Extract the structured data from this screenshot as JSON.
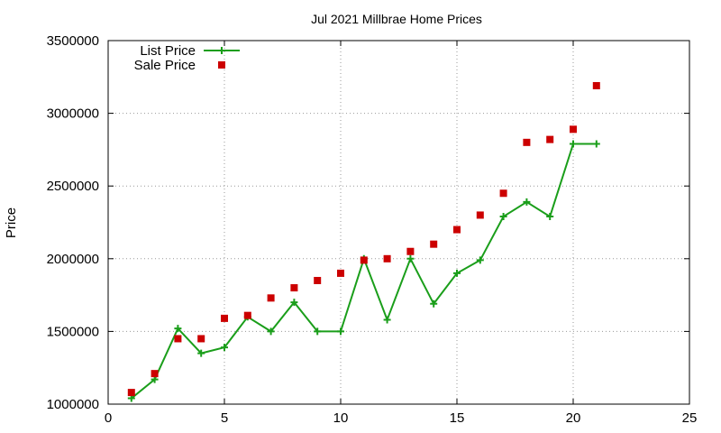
{
  "chart_data": {
    "type": "line",
    "title": "Jul 2021 Millbrae Home Prices",
    "xlabel": "",
    "ylabel": "Price",
    "xlim": [
      0,
      25
    ],
    "ylim": [
      1000000,
      3500000
    ],
    "xticks": [
      0,
      5,
      10,
      15,
      20,
      25
    ],
    "yticks": [
      1000000,
      1500000,
      2000000,
      2500000,
      3000000,
      3500000
    ],
    "grid": true,
    "legend_position": "top-left",
    "series": [
      {
        "name": "List Price",
        "style": "line-with-plus-markers",
        "color": "#1a9e1a",
        "x": [
          1,
          2,
          3,
          4,
          5,
          6,
          7,
          8,
          9,
          10,
          11,
          12,
          13,
          14,
          15,
          16,
          17,
          18,
          19,
          20,
          21
        ],
        "y": [
          1040000,
          1170000,
          1520000,
          1350000,
          1390000,
          1600000,
          1500000,
          1700000,
          1500000,
          1500000,
          2000000,
          1580000,
          2000000,
          1690000,
          1900000,
          1990000,
          2290000,
          2390000,
          2290000,
          2790000,
          2790000
        ]
      },
      {
        "name": "Sale Price",
        "style": "square-markers",
        "color": "#cc0000",
        "x": [
          1,
          2,
          3,
          4,
          5,
          6,
          7,
          8,
          9,
          10,
          11,
          12,
          13,
          14,
          15,
          16,
          17,
          18,
          19,
          20,
          21
        ],
        "y": [
          1080000,
          1210000,
          1450000,
          1450000,
          1590000,
          1610000,
          1730000,
          1800000,
          1850000,
          1900000,
          1990000,
          2000000,
          2050000,
          2100000,
          2200000,
          2300000,
          2450000,
          2800000,
          2820000,
          2890000,
          3190000
        ]
      }
    ]
  }
}
